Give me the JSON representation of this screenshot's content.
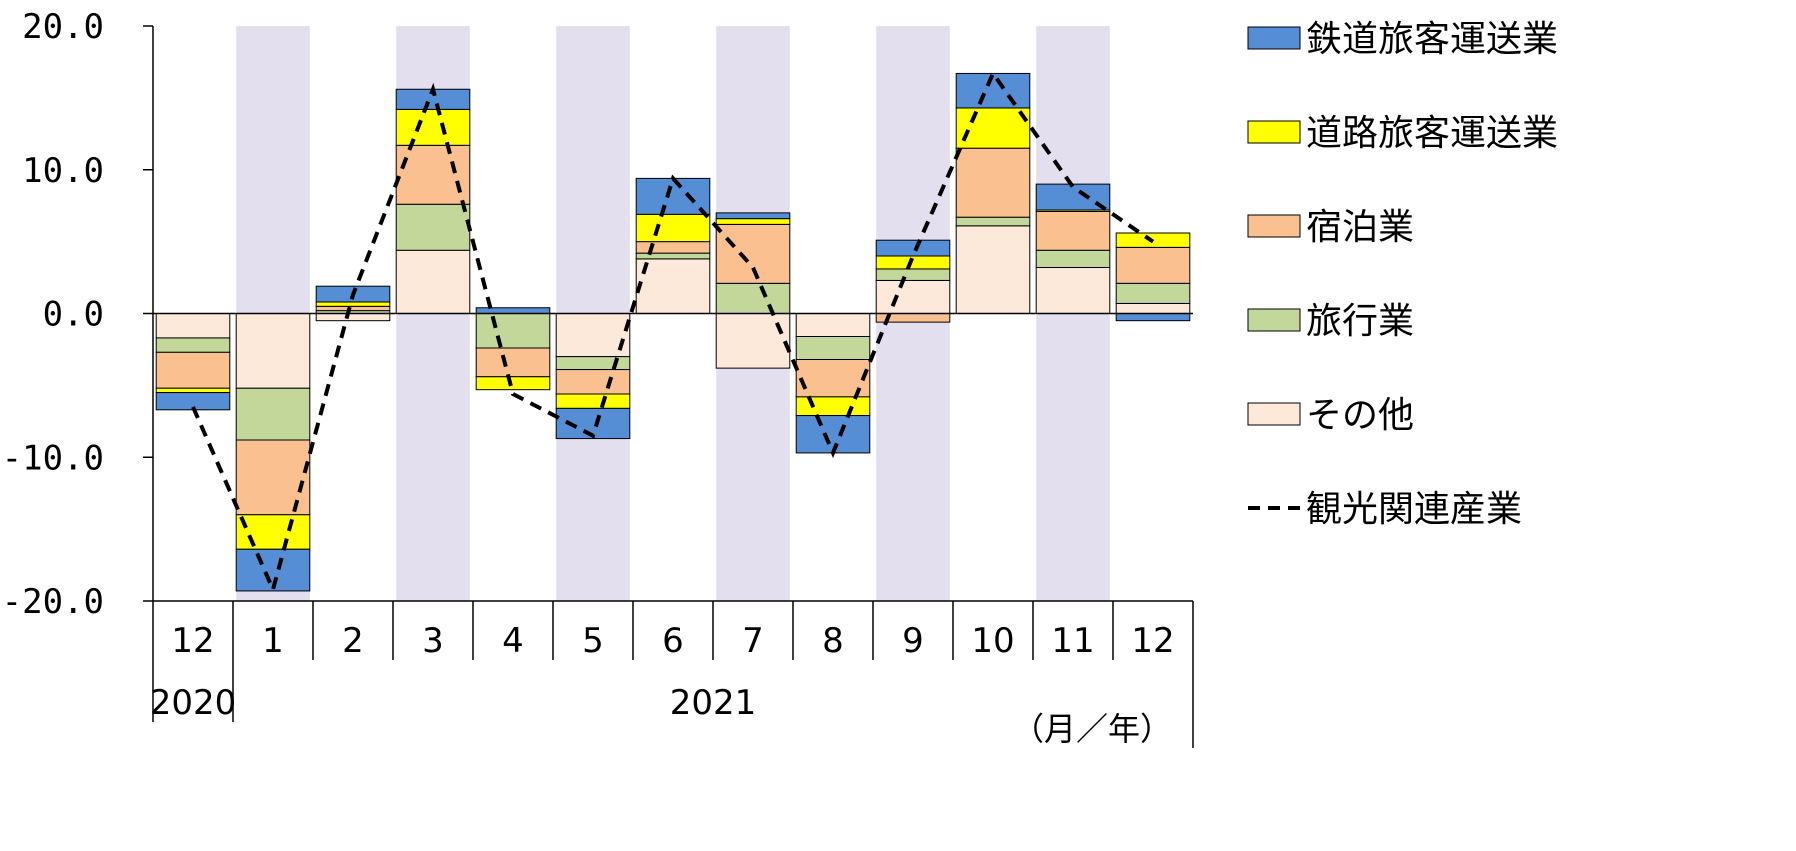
{
  "chart_data": {
    "type": "bar",
    "stacked": true,
    "ylim": [
      -20,
      20
    ],
    "yticks": [
      "20.0",
      "10.0",
      "0.0",
      "-10.0",
      "-20.0"
    ],
    "ytick_values": [
      20,
      10,
      0,
      -10,
      -20
    ],
    "categories": [
      "12",
      "1",
      "2",
      "3",
      "4",
      "5",
      "6",
      "7",
      "8",
      "9",
      "10",
      "11",
      "12"
    ],
    "years": [
      {
        "label": "2020",
        "start": 0,
        "end": 0
      },
      {
        "label": "2021",
        "start": 1,
        "end": 12
      }
    ],
    "unit_label": "（月／年）",
    "shaded_columns": [
      1,
      3,
      5,
      7,
      9,
      11
    ],
    "shade_color": "#e3dfee",
    "series": [
      {
        "name": "その他",
        "color": "#fde9d9",
        "values": [
          -1.7,
          -5.2,
          -0.5,
          4.4,
          0.0,
          -3.0,
          3.8,
          -3.8,
          -1.6,
          2.3,
          6.1,
          3.2,
          0.7
        ]
      },
      {
        "name": "旅行業",
        "color": "#c4d79b",
        "values": [
          -1.0,
          -3.6,
          0.2,
          3.2,
          -2.4,
          -0.9,
          0.4,
          2.1,
          -1.6,
          0.8,
          0.6,
          1.2,
          1.4
        ]
      },
      {
        "name": "宿泊業",
        "color": "#fac090",
        "values": [
          -2.5,
          -5.2,
          0.3,
          4.1,
          -2.0,
          -1.7,
          0.8,
          4.1,
          -2.6,
          -0.6,
          4.8,
          2.7,
          2.5
        ]
      },
      {
        "name": "道路旅客運送業",
        "color": "#ffff00",
        "values": [
          -0.3,
          -2.4,
          0.3,
          2.5,
          -0.9,
          -1.0,
          1.9,
          0.4,
          -1.3,
          0.9,
          2.8,
          0.1,
          1.0
        ]
      },
      {
        "name": "鉄道旅客運送業",
        "color": "#558ed5",
        "values": [
          -1.2,
          -2.9,
          1.1,
          1.4,
          0.4,
          -2.1,
          2.5,
          0.4,
          -2.6,
          1.1,
          2.4,
          1.8,
          -0.5
        ]
      }
    ],
    "line_series": {
      "name": "観光関連産業",
      "color": "#000000",
      "values": [
        -6.5,
        -19.2,
        1.3,
        15.6,
        -5.6,
        -8.5,
        9.4,
        3.2,
        -9.7,
        4.0,
        16.7,
        8.8,
        5.0
      ]
    },
    "legend": {
      "placement": "right",
      "items": [
        {
          "label": "鉄道旅客運送業",
          "kind": "box",
          "color": "#558ed5"
        },
        {
          "label": "道路旅客運送業",
          "kind": "box",
          "color": "#ffff00"
        },
        {
          "label": "宿泊業",
          "kind": "box",
          "color": "#fac090"
        },
        {
          "label": "旅行業",
          "kind": "box",
          "color": "#c4d79b"
        },
        {
          "label": "その他",
          "kind": "box",
          "color": "#fde9d9"
        },
        {
          "label": "観光関連産業",
          "kind": "dash",
          "color": "#000000"
        }
      ]
    }
  }
}
